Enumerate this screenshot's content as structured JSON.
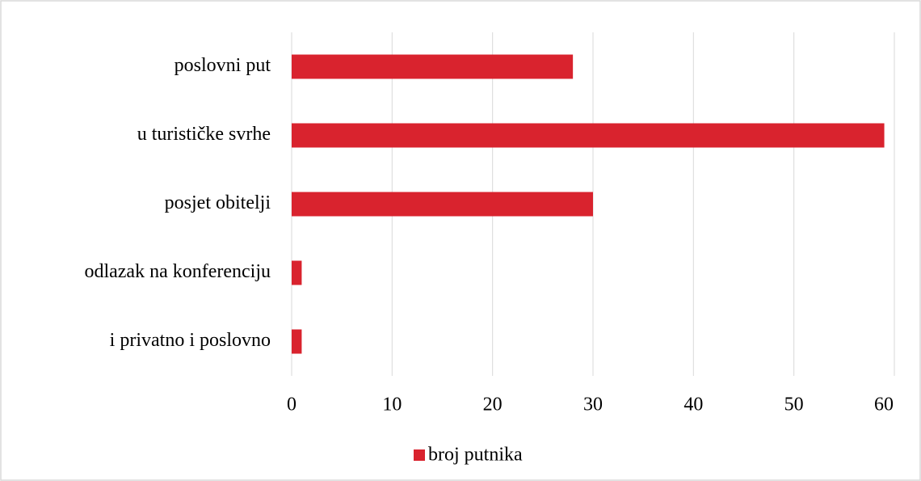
{
  "chart_data": {
    "type": "bar",
    "orientation": "horizontal",
    "categories": [
      "poslovni put",
      "u turističke svrhe",
      "posjet obitelji",
      "odlazak na konferenciju",
      "i privatno i poslovno"
    ],
    "series": [
      {
        "name": "broj putnika",
        "color": "#d9232e",
        "values": [
          28,
          59,
          30,
          1,
          1
        ]
      }
    ],
    "xlim": [
      0,
      60
    ],
    "xticks": [
      0,
      10,
      20,
      30,
      40,
      50,
      60
    ],
    "grid": true,
    "legend": "bottom"
  }
}
